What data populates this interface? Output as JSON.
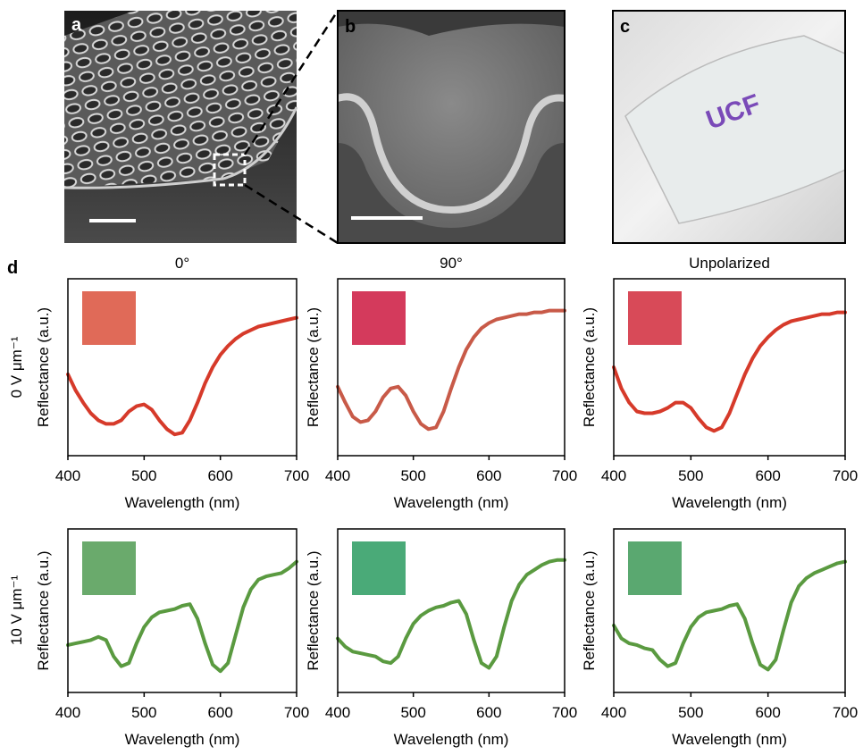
{
  "panel_labels": [
    "a",
    "b",
    "c",
    "d"
  ],
  "photo_text": "UCF",
  "row_labels": [
    "0 V μm⁻¹",
    "10 V μm⁻¹"
  ],
  "chart_data": [
    {
      "type": "line",
      "title": "0°",
      "x_label": "Wavelength (nm)",
      "y_label": "Reflectance (a.u.)",
      "inset_color": "#e06a58",
      "x": [
        400,
        410,
        420,
        430,
        440,
        450,
        460,
        470,
        480,
        490,
        500,
        510,
        520,
        530,
        540,
        550,
        560,
        570,
        580,
        590,
        600,
        610,
        620,
        630,
        640,
        650,
        660,
        670,
        680,
        690,
        700
      ],
      "series": [
        {
          "color": "#d63a2a",
          "values": [
            0.46,
            0.37,
            0.3,
            0.24,
            0.2,
            0.18,
            0.18,
            0.2,
            0.25,
            0.28,
            0.29,
            0.26,
            0.2,
            0.15,
            0.12,
            0.13,
            0.2,
            0.3,
            0.41,
            0.5,
            0.57,
            0.62,
            0.66,
            0.69,
            0.71,
            0.73,
            0.74,
            0.75,
            0.76,
            0.77,
            0.78
          ]
        }
      ],
      "xlim": [
        400,
        700
      ],
      "xticks": [
        400,
        500,
        600,
        700
      ],
      "ylim": [
        0,
        1
      ]
    },
    {
      "type": "line",
      "title": "90°",
      "x_label": "Wavelength (nm)",
      "y_label": "Reflectance (a.u.)",
      "inset_color": "#d43a5c",
      "x": [
        400,
        410,
        420,
        430,
        440,
        450,
        460,
        470,
        480,
        490,
        500,
        510,
        520,
        530,
        540,
        550,
        560,
        570,
        580,
        590,
        600,
        610,
        620,
        630,
        640,
        650,
        660,
        670,
        680,
        690,
        700
      ],
      "series": [
        {
          "color": "#c85a48",
          "values": [
            0.39,
            0.3,
            0.22,
            0.19,
            0.2,
            0.25,
            0.33,
            0.38,
            0.39,
            0.34,
            0.25,
            0.18,
            0.15,
            0.16,
            0.25,
            0.38,
            0.5,
            0.6,
            0.67,
            0.72,
            0.75,
            0.77,
            0.78,
            0.79,
            0.8,
            0.8,
            0.81,
            0.81,
            0.82,
            0.82,
            0.82
          ]
        }
      ],
      "xlim": [
        400,
        700
      ],
      "xticks": [
        400,
        500,
        600,
        700
      ],
      "ylim": [
        0,
        1
      ]
    },
    {
      "type": "line",
      "title": "Unpolarized",
      "x_label": "Wavelength (nm)",
      "y_label": "Reflectance (a.u.)",
      "inset_color": "#d84a58",
      "x": [
        400,
        410,
        420,
        430,
        440,
        450,
        460,
        470,
        480,
        490,
        500,
        510,
        520,
        530,
        540,
        550,
        560,
        570,
        580,
        590,
        600,
        610,
        620,
        630,
        640,
        650,
        660,
        670,
        680,
        690,
        700
      ],
      "series": [
        {
          "color": "#d63a2a",
          "values": [
            0.5,
            0.38,
            0.3,
            0.25,
            0.24,
            0.24,
            0.25,
            0.27,
            0.3,
            0.3,
            0.27,
            0.21,
            0.16,
            0.14,
            0.16,
            0.24,
            0.35,
            0.46,
            0.55,
            0.62,
            0.67,
            0.71,
            0.74,
            0.76,
            0.77,
            0.78,
            0.79,
            0.8,
            0.8,
            0.81,
            0.81
          ]
        }
      ],
      "xlim": [
        400,
        700
      ],
      "xticks": [
        400,
        500,
        600,
        700
      ],
      "ylim": [
        0,
        1
      ]
    },
    {
      "type": "line",
      "x_label": "Wavelength (nm)",
      "y_label": "Reflectance (a.u.)",
      "inset_color": "#6aaa6c",
      "x": [
        400,
        410,
        420,
        430,
        440,
        450,
        460,
        470,
        480,
        490,
        500,
        510,
        520,
        530,
        540,
        550,
        560,
        570,
        580,
        590,
        600,
        610,
        620,
        630,
        640,
        650,
        660,
        670,
        680,
        690,
        700
      ],
      "series": [
        {
          "color": "#5a9a40",
          "values": [
            0.29,
            0.3,
            0.31,
            0.32,
            0.34,
            0.32,
            0.22,
            0.16,
            0.18,
            0.3,
            0.4,
            0.46,
            0.49,
            0.5,
            0.51,
            0.53,
            0.54,
            0.45,
            0.3,
            0.17,
            0.13,
            0.18,
            0.35,
            0.52,
            0.63,
            0.69,
            0.71,
            0.72,
            0.73,
            0.76,
            0.8
          ]
        }
      ],
      "xlim": [
        400,
        700
      ],
      "xticks": [
        400,
        500,
        600,
        700
      ],
      "ylim": [
        0,
        1
      ]
    },
    {
      "type": "line",
      "x_label": "Wavelength (nm)",
      "y_label": "Reflectance (a.u.)",
      "inset_color": "#4aaa78",
      "x": [
        400,
        410,
        420,
        430,
        440,
        450,
        460,
        470,
        480,
        490,
        500,
        510,
        520,
        530,
        540,
        550,
        560,
        570,
        580,
        590,
        600,
        610,
        620,
        630,
        640,
        650,
        660,
        670,
        680,
        690,
        700
      ],
      "series": [
        {
          "color": "#5a9a40",
          "values": [
            0.33,
            0.28,
            0.25,
            0.24,
            0.23,
            0.22,
            0.19,
            0.18,
            0.22,
            0.33,
            0.42,
            0.47,
            0.5,
            0.52,
            0.53,
            0.55,
            0.56,
            0.48,
            0.32,
            0.18,
            0.15,
            0.22,
            0.4,
            0.56,
            0.66,
            0.72,
            0.75,
            0.78,
            0.8,
            0.81,
            0.81
          ]
        }
      ],
      "xlim": [
        400,
        700
      ],
      "xticks": [
        400,
        500,
        600,
        700
      ],
      "ylim": [
        0,
        1
      ]
    },
    {
      "type": "line",
      "x_label": "Wavelength (nm)",
      "y_label": "Reflectance (a.u.)",
      "inset_color": "#5aa870",
      "x": [
        400,
        410,
        420,
        430,
        440,
        450,
        460,
        470,
        480,
        490,
        500,
        510,
        520,
        530,
        540,
        550,
        560,
        570,
        580,
        590,
        600,
        610,
        620,
        630,
        640,
        650,
        660,
        670,
        680,
        690,
        700
      ],
      "series": [
        {
          "color": "#5a9a40",
          "values": [
            0.41,
            0.33,
            0.3,
            0.29,
            0.27,
            0.26,
            0.2,
            0.16,
            0.18,
            0.3,
            0.4,
            0.46,
            0.49,
            0.5,
            0.51,
            0.53,
            0.54,
            0.45,
            0.3,
            0.17,
            0.14,
            0.2,
            0.38,
            0.55,
            0.65,
            0.7,
            0.73,
            0.75,
            0.77,
            0.79,
            0.8
          ]
        }
      ],
      "xlim": [
        400,
        700
      ],
      "xticks": [
        400,
        500,
        600,
        700
      ],
      "ylim": [
        0,
        1
      ]
    }
  ]
}
